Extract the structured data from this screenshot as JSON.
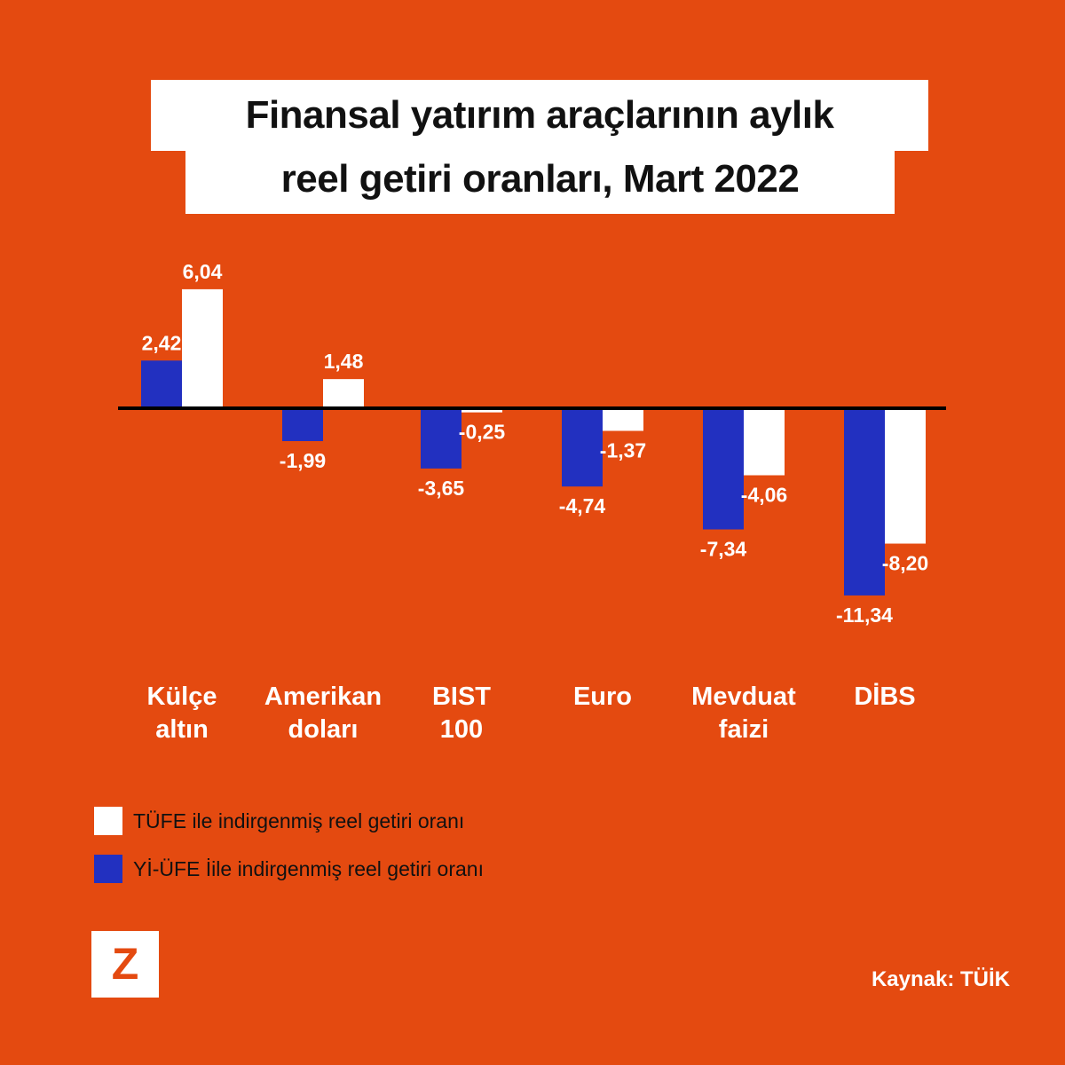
{
  "chart_data": {
    "type": "bar",
    "title": [
      "Finansal yatırım araçlarının aylık",
      "reel getiri oranları, Mart 2022"
    ],
    "categories": [
      [
        "Külçe",
        "altın"
      ],
      [
        "Amerikan",
        "doları"
      ],
      [
        "BIST",
        "100"
      ],
      [
        "Euro",
        ""
      ],
      [
        "Mevduat",
        "faizi"
      ],
      [
        "DİBS",
        ""
      ]
    ],
    "series": [
      {
        "name": "Yİ-ÜFE İile indirgenmiş reel getiri oranı",
        "color": "#2230C0",
        "values": [
          2.42,
          -1.99,
          -3.65,
          -4.74,
          -7.34,
          -11.34
        ],
        "labels": [
          "2,42",
          "-1,99",
          "-3,65",
          "-4,74",
          "-7,34",
          "-11,34"
        ]
      },
      {
        "name": "TÜFE ile indirgenmiş reel getiri oranı",
        "color": "#FFFFFF",
        "values": [
          6.04,
          1.48,
          -0.25,
          -1.37,
          -4.06,
          -8.2
        ],
        "labels": [
          "6,04",
          "1,48",
          "-0,25",
          "-1,37",
          "-4,06",
          "-8,20"
        ]
      }
    ],
    "xlabel": "",
    "ylabel": "",
    "grid": false,
    "legend_placement": "bottom-left"
  },
  "legend": [
    "TÜFE ile indirgenmiş reel getiri oranı",
    "Yİ-ÜFE İile indirgenmiş reel getiri oranı"
  ],
  "logo": "Z",
  "source": "Kaynak: TÜİK",
  "colors": {
    "background": "#E44A10",
    "blue": "#2230C0",
    "white": "#FFFFFF"
  }
}
